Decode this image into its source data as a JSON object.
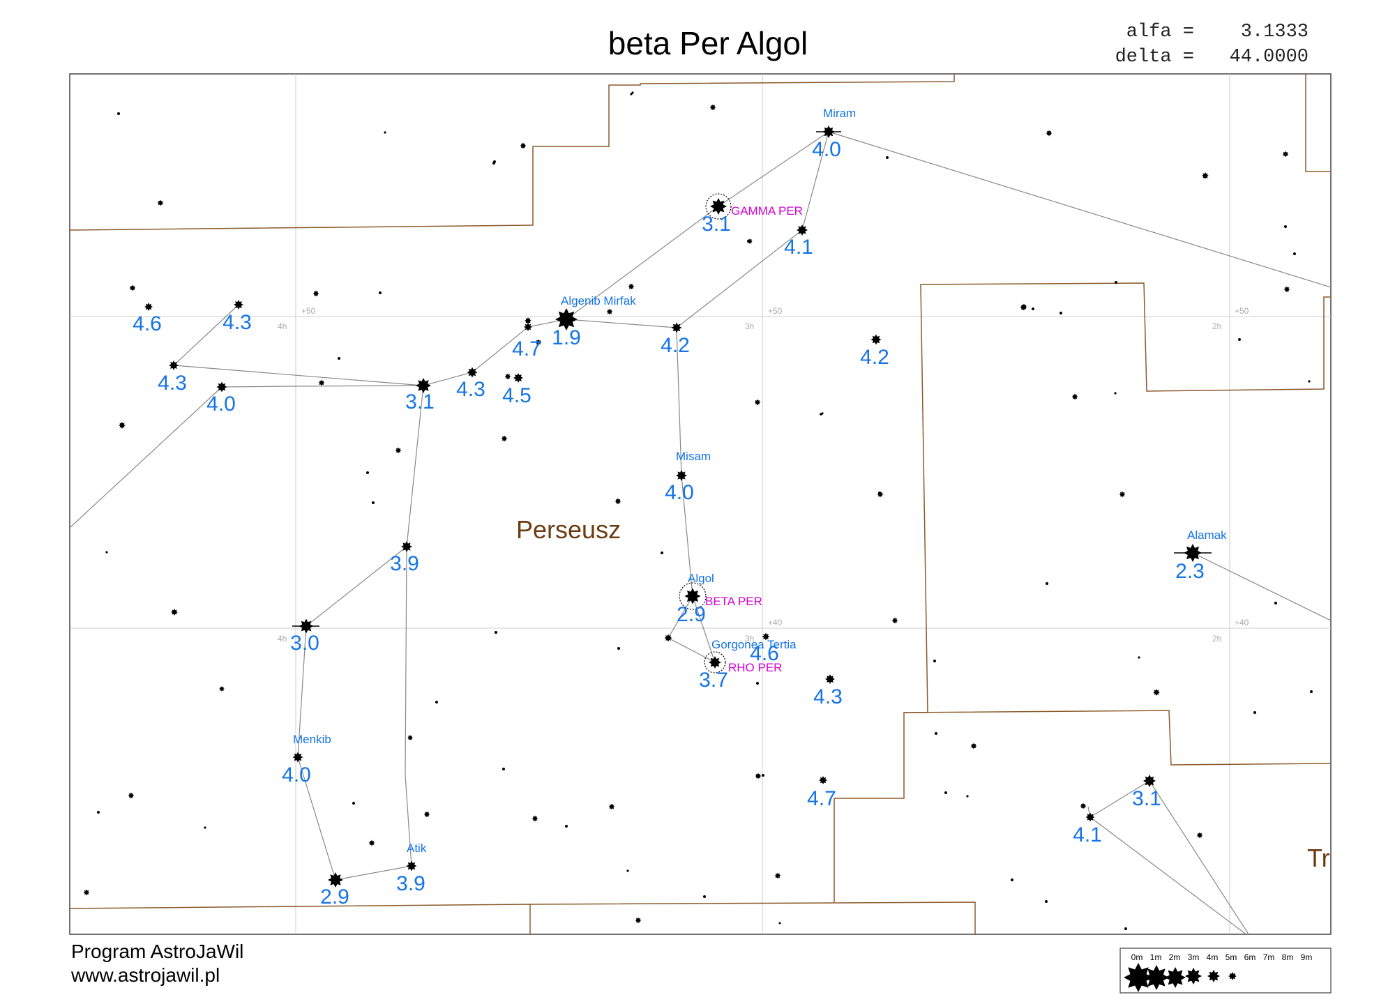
{
  "title": "beta Per Algol",
  "coords": {
    "alfa_label": "alfa =",
    "alfa_value": "3.1333",
    "delta_label": "delta =",
    "delta_value": "44.0000"
  },
  "footer": {
    "program": "Program AstroJaWil",
    "website": "www.astrojawil.pl"
  },
  "constellations": [
    "Perseusz",
    "Trójkąt"
  ],
  "grid_labels": {
    "dec_50": "+50",
    "dec_40": "+40",
    "ra_4h": "4h",
    "ra_3h": "3h",
    "ra_2h": "2h"
  },
  "star_names": {
    "miram": "Miram",
    "algenib": "Algenib Mirfak",
    "misam": "Misam",
    "algol": "Algol",
    "gorgonea": "Gorgonea Tertia",
    "alamak": "Alamak",
    "menkib": "Menkib",
    "atik": "Atik"
  },
  "variable_names": {
    "gamma": "GAMMA PER",
    "beta": "BETA PER",
    "rho": "RHO PER"
  },
  "magnitudes": [
    "4.0",
    "3.1",
    "4.1",
    "1.9",
    "4.7",
    "4.2",
    "4.2",
    "4.3",
    "4.5",
    "3.1",
    "4.6",
    "4.3",
    "4.3",
    "4.0",
    "4.0",
    "3.9",
    "2.9",
    "3.0",
    "4.6",
    "3.7",
    "4.3",
    "2.3",
    "4.0",
    "2.9",
    "3.9",
    "4.7",
    "3.1",
    "4.1"
  ],
  "legend": {
    "labels": [
      "0m",
      "1m",
      "2m",
      "3m",
      "4m",
      "5m",
      "6m",
      "7m",
      "8m",
      "9m"
    ]
  },
  "colors": {
    "labels": "#1473e6",
    "variables": "#d400d4",
    "constellation": "#6b3c10",
    "boundary": "#8b5a2b",
    "lines": "#888888",
    "grid": "#cccccc"
  }
}
